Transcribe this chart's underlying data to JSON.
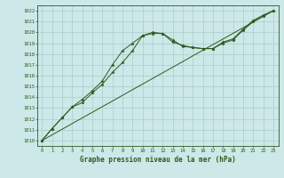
{
  "x": [
    0,
    1,
    2,
    3,
    4,
    5,
    6,
    7,
    8,
    9,
    10,
    11,
    12,
    13,
    14,
    15,
    16,
    17,
    18,
    19,
    20,
    21,
    22,
    23
  ],
  "line1": [
    1010.0,
    1011.1,
    1012.1,
    1013.1,
    1013.5,
    1014.4,
    1015.2,
    1016.3,
    1017.2,
    1018.3,
    1019.7,
    1019.9,
    1019.9,
    1019.3,
    1018.7,
    1018.6,
    1018.5,
    1018.5,
    1019.0,
    1019.3,
    1020.2,
    1021.0,
    1021.5,
    1022.0
  ],
  "line2": [
    1010.0,
    1011.1,
    1012.1,
    1013.1,
    1013.8,
    1014.6,
    1015.5,
    1017.0,
    1018.3,
    1019.0,
    1019.7,
    1020.0,
    1019.9,
    1019.1,
    1018.8,
    1018.6,
    1018.5,
    1018.5,
    1019.1,
    1019.4,
    1020.3,
    1021.1,
    1021.6,
    1022.0
  ],
  "line3": [
    1010.0,
    1010.52,
    1011.04,
    1011.57,
    1012.09,
    1012.61,
    1013.13,
    1013.65,
    1014.17,
    1014.7,
    1015.22,
    1015.74,
    1016.26,
    1016.78,
    1017.3,
    1017.83,
    1018.35,
    1018.87,
    1019.39,
    1019.91,
    1020.43,
    1020.96,
    1021.48,
    1022.0
  ],
  "bg_color": "#cce8e8",
  "grid_color": "#aacccc",
  "line_color": "#2d5a1b",
  "title": "Graphe pression niveau de la mer (hPa)",
  "ylim_min": 1009.5,
  "ylim_max": 1022.5,
  "yticks": [
    1010,
    1011,
    1012,
    1013,
    1014,
    1015,
    1016,
    1017,
    1018,
    1019,
    1020,
    1021,
    1022
  ],
  "xticks": [
    0,
    1,
    2,
    3,
    4,
    5,
    6,
    7,
    8,
    9,
    10,
    11,
    12,
    13,
    14,
    15,
    16,
    17,
    18,
    19,
    20,
    21,
    22,
    23
  ]
}
